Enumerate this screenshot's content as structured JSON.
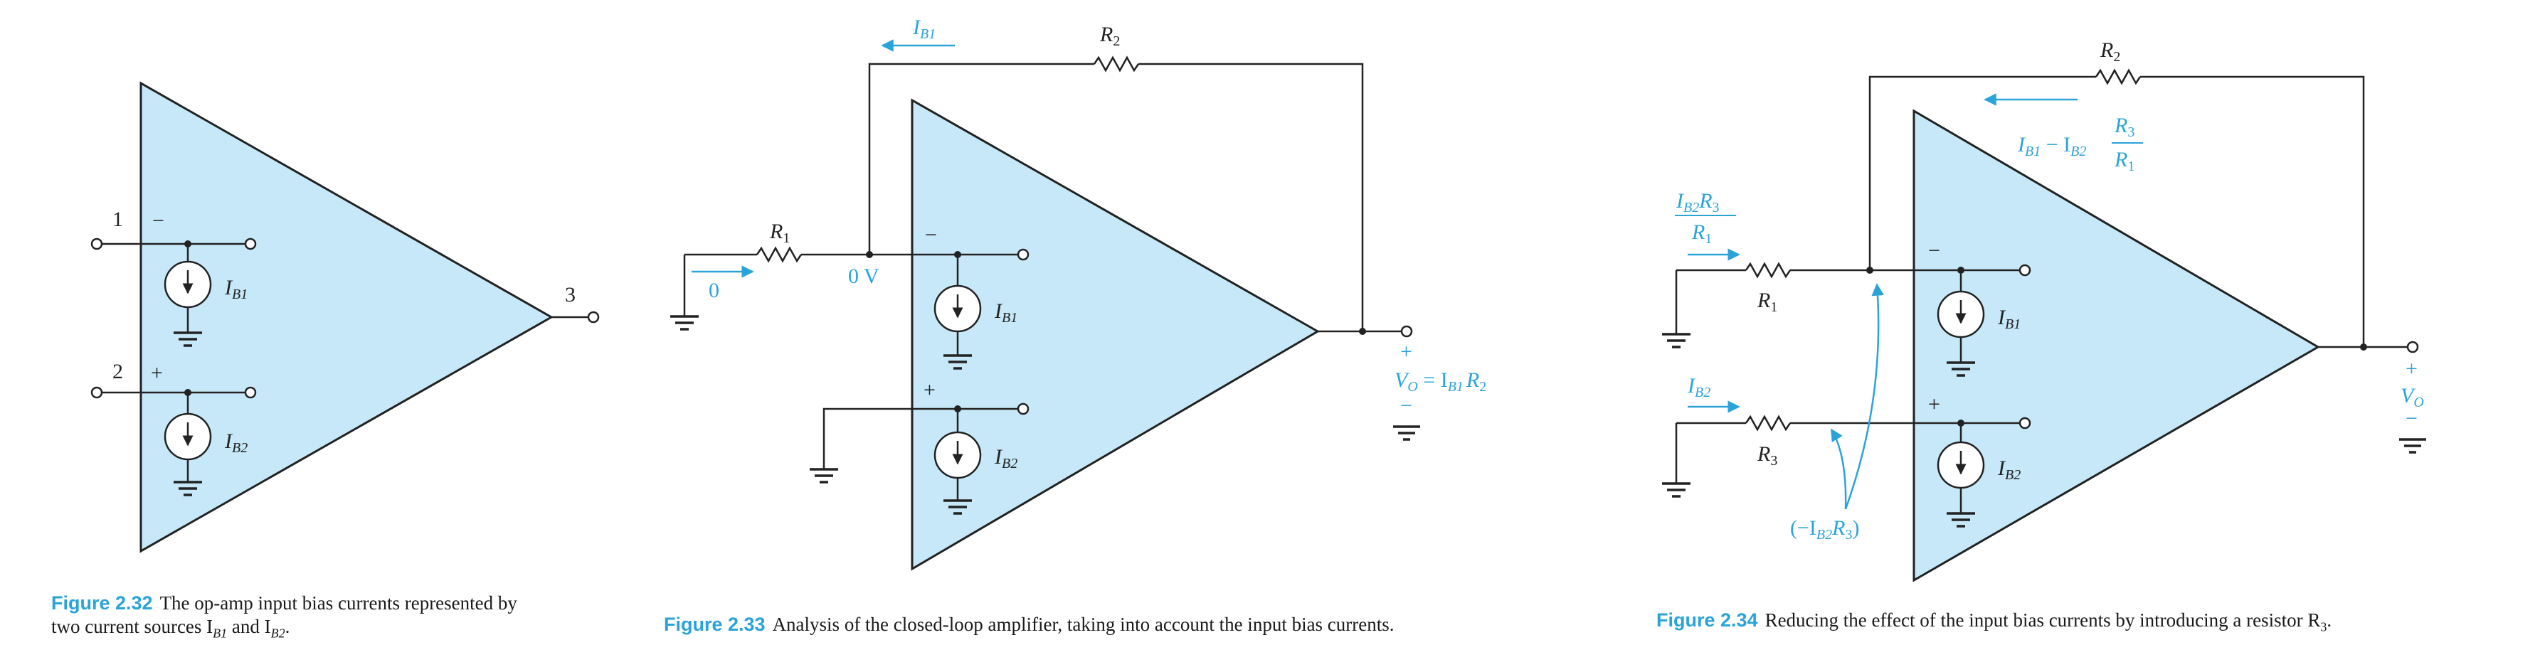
{
  "figure_32": {
    "caption_number": "Figure 2.32",
    "caption_text": "The op-amp input bias currents represented by two current sources I",
    "caption_b1_sub": "B1",
    "caption_and": " and I",
    "caption_b2_sub": "B2",
    "caption_end": ".",
    "terminal_1": "1",
    "terminal_2": "2",
    "terminal_3": "3",
    "minus_sign": "−",
    "plus_sign": "+",
    "source_top_label": "I",
    "source_top_sub": "B1",
    "source_bottom_label": "I",
    "source_bottom_sub": "B2"
  },
  "figure_33": {
    "caption_number": "Figure 2.33",
    "caption_text": "Analysis of the closed-loop amplifier, taking into account the input bias currents.",
    "resistor_r1": "R",
    "resistor_r1_sub": "1",
    "resistor_r2": "R",
    "resistor_r2_sub": "2",
    "feedback_current": "I",
    "feedback_current_sub": "B1",
    "input_current": "0",
    "node_voltage": "0 V",
    "minus_sign": "−",
    "plus_sign": "+",
    "source_top_label": "I",
    "source_top_sub": "B1",
    "source_bottom_label": "I",
    "source_bottom_sub": "B2",
    "out_plus": "+",
    "out_minus": "−",
    "output_expr_lhs": "V",
    "output_expr_lhs_sub": "O",
    "output_expr_eq": " = I",
    "output_expr_sub": "B1",
    "output_expr_r": "R",
    "output_expr_r_sub": "2"
  },
  "figure_34": {
    "caption_number": "Figure 2.34",
    "caption_text": "Reducing the effect of the input bias currents by introducing a resistor R",
    "caption_sub": "3",
    "caption_end": ".",
    "resistor_r1": "R",
    "resistor_r1_sub": "1",
    "resistor_r2": "R",
    "resistor_r2_sub": "2",
    "resistor_r3": "R",
    "resistor_r3_sub": "3",
    "current_r1_num": "I",
    "current_r1_num_sub": "B2",
    "current_r1_num_r": "R",
    "current_r1_num_r_sub": "3",
    "current_r1_den": "R",
    "current_r1_den_sub": "1",
    "current_r3": "I",
    "current_r3_sub": "B2",
    "feedback_i1": "I",
    "feedback_i1_sub": "B1",
    "feedback_minus": " − I",
    "feedback_i2_sub": "B2",
    "feedback_frac_num": "R",
    "feedback_frac_num_sub": "3",
    "feedback_frac_den": "R",
    "feedback_frac_den_sub": "1",
    "voltage_note_open": "(−I",
    "voltage_note_sub": "B2",
    "voltage_note_r": "R",
    "voltage_note_r_sub": "3",
    "voltage_note_close": ")",
    "minus_sign": "−",
    "plus_sign": "+",
    "source_top_label": "I",
    "source_top_sub": "B1",
    "source_bottom_label": "I",
    "source_bottom_sub": "B2",
    "out_plus": "+",
    "out_label": "V",
    "out_label_sub": "O",
    "out_minus": "−"
  }
}
